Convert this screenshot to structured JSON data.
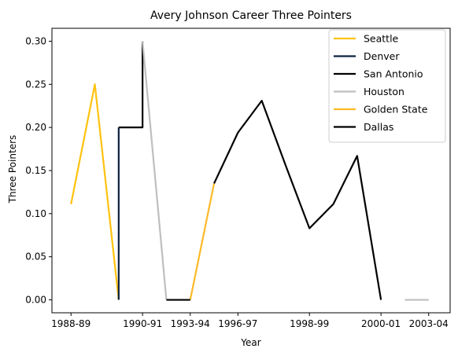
{
  "chart_data": {
    "type": "line",
    "title": "Avery Johnson Career Three Pointers",
    "xlabel": "Year",
    "ylabel": "Three Pointers",
    "xlim": [
      -0.8,
      15.9
    ],
    "ylim": [
      -0.015,
      0.315
    ],
    "x_ticks": [
      {
        "pos": 0,
        "label": "1988-89"
      },
      {
        "pos": 3,
        "label": "1990-91"
      },
      {
        "pos": 5,
        "label": "1993-94"
      },
      {
        "pos": 7,
        "label": "1996-97"
      },
      {
        "pos": 10,
        "label": "1998-99"
      },
      {
        "pos": 13,
        "label": "2000-01"
      },
      {
        "pos": 15,
        "label": "2003-04"
      }
    ],
    "y_ticks": [
      {
        "value": 0.0,
        "label": "0.00"
      },
      {
        "value": 0.05,
        "label": "0.05"
      },
      {
        "value": 0.1,
        "label": "0.10"
      },
      {
        "value": 0.15,
        "label": "0.15"
      },
      {
        "value": 0.2,
        "label": "0.20"
      },
      {
        "value": 0.25,
        "label": "0.25"
      },
      {
        "value": 0.3,
        "label": "0.30"
      }
    ],
    "legend_position": "top-right",
    "grid": false,
    "series": [
      {
        "name": "Seattle",
        "color": "#FFC20E",
        "points": [
          [
            0,
            0.111
          ],
          [
            1,
            0.25
          ],
          [
            2,
            0.0
          ]
        ]
      },
      {
        "name": "Denver",
        "color": "#0E2240",
        "points": [
          [
            2,
            0.0
          ],
          [
            2,
            0.2
          ]
        ]
      },
      {
        "name": "San Antonio",
        "color": "#000000",
        "points": [
          [
            2,
            0.2
          ],
          [
            3,
            0.2
          ],
          [
            3,
            0.3
          ]
        ]
      },
      {
        "name": "Houston",
        "color": "#BFBFBF",
        "points": [
          [
            3,
            0.3
          ],
          [
            4,
            0.0
          ]
        ]
      },
      {
        "name": "Golden State",
        "color": "#FDB927",
        "points": [
          [
            5,
            0.0
          ],
          [
            6,
            0.135
          ]
        ]
      },
      {
        "name": "Dallas",
        "color": "#000000",
        "points": [
          [
            4,
            0.0
          ],
          [
            5,
            0.0
          ]
        ]
      },
      {
        "name": "",
        "color": "#000000",
        "points": [
          [
            6,
            0.135
          ],
          [
            7,
            0.194
          ],
          [
            8,
            0.231
          ],
          [
            9,
            0.156
          ],
          [
            10,
            0.083
          ],
          [
            11,
            0.111
          ],
          [
            12,
            0.167
          ],
          [
            13,
            0.0
          ]
        ]
      },
      {
        "name": "",
        "color": "#BFBFBF",
        "points": [
          [
            14,
            0.0
          ],
          [
            15,
            0.0
          ]
        ]
      }
    ]
  }
}
